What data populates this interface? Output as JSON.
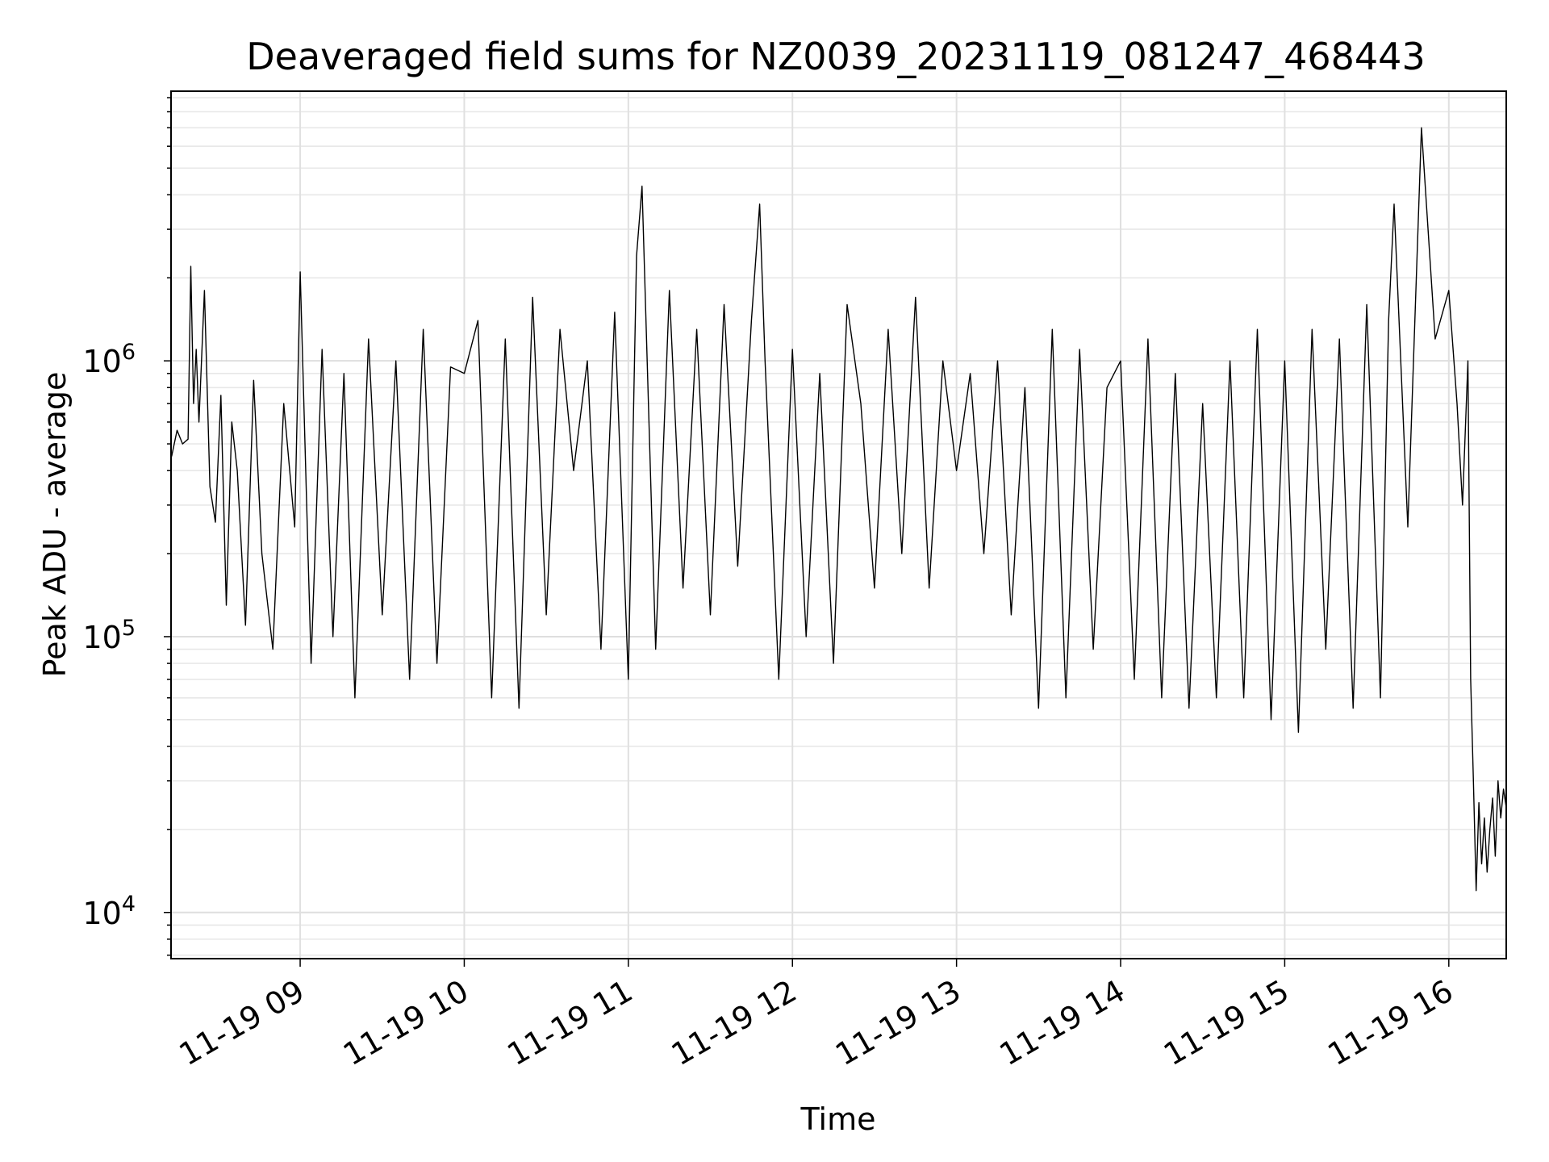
{
  "chart_data": {
    "type": "line",
    "title": "Deaveraged field sums for NZ0039_20231119_081247_468443",
    "xlabel": "Time",
    "ylabel": "Peak ADU - average",
    "yscale": "log",
    "ylim": [
      6800,
      9500000
    ],
    "xlim": [
      "2023-11-19 08:12:47",
      "2023-11-19 16:21:00"
    ],
    "grid": true,
    "line_color": "#000000",
    "x_ticks": [
      {
        "label": "11-19 09",
        "value": "2023-11-19 09:00"
      },
      {
        "label": "11-19 10",
        "value": "2023-11-19 10:00"
      },
      {
        "label": "11-19 11",
        "value": "2023-11-19 11:00"
      },
      {
        "label": "11-19 12",
        "value": "2023-11-19 12:00"
      },
      {
        "label": "11-19 13",
        "value": "2023-11-19 13:00"
      },
      {
        "label": "11-19 14",
        "value": "2023-11-19 14:00"
      },
      {
        "label": "11-19 15",
        "value": "2023-11-19 15:00"
      },
      {
        "label": "11-19 16",
        "value": "2023-11-19 16:00"
      }
    ],
    "y_ticks": [
      {
        "base": "10",
        "exp": "4",
        "value": 10000
      },
      {
        "base": "10",
        "exp": "5",
        "value": 100000
      },
      {
        "base": "10",
        "exp": "6",
        "value": 1000000
      }
    ],
    "series": [
      {
        "x": [
          "2023-11-19 08:13",
          "2023-11-19 08:15",
          "2023-11-19 08:17",
          "2023-11-19 08:19",
          "2023-11-19 08:20",
          "2023-11-19 08:21",
          "2023-11-19 08:22",
          "2023-11-19 08:23",
          "2023-11-19 08:25",
          "2023-11-19 08:27",
          "2023-11-19 08:29",
          "2023-11-19 08:31",
          "2023-11-19 08:33",
          "2023-11-19 08:35",
          "2023-11-19 08:37",
          "2023-11-19 08:40",
          "2023-11-19 08:43",
          "2023-11-19 08:46",
          "2023-11-19 08:50",
          "2023-11-19 08:54",
          "2023-11-19 08:58",
          "2023-11-19 09:00",
          "2023-11-19 09:04",
          "2023-11-19 09:08",
          "2023-11-19 09:12",
          "2023-11-19 09:16",
          "2023-11-19 09:20",
          "2023-11-19 09:25",
          "2023-11-19 09:30",
          "2023-11-19 09:35",
          "2023-11-19 09:40",
          "2023-11-19 09:45",
          "2023-11-19 09:50",
          "2023-11-19 09:55",
          "2023-11-19 10:00",
          "2023-11-19 10:05",
          "2023-11-19 10:10",
          "2023-11-19 10:15",
          "2023-11-19 10:20",
          "2023-11-19 10:25",
          "2023-11-19 10:30",
          "2023-11-19 10:35",
          "2023-11-19 10:40",
          "2023-11-19 10:45",
          "2023-11-19 10:50",
          "2023-11-19 10:55",
          "2023-11-19 11:00",
          "2023-11-19 11:03",
          "2023-11-19 11:05",
          "2023-11-19 11:10",
          "2023-11-19 11:15",
          "2023-11-19 11:20",
          "2023-11-19 11:25",
          "2023-11-19 11:30",
          "2023-11-19 11:35",
          "2023-11-19 11:40",
          "2023-11-19 11:45",
          "2023-11-19 11:48",
          "2023-11-19 11:50",
          "2023-11-19 11:55",
          "2023-11-19 12:00",
          "2023-11-19 12:05",
          "2023-11-19 12:10",
          "2023-11-19 12:15",
          "2023-11-19 12:20",
          "2023-11-19 12:25",
          "2023-11-19 12:30",
          "2023-11-19 12:35",
          "2023-11-19 12:40",
          "2023-11-19 12:45",
          "2023-11-19 12:50",
          "2023-11-19 12:55",
          "2023-11-19 13:00",
          "2023-11-19 13:05",
          "2023-11-19 13:10",
          "2023-11-19 13:15",
          "2023-11-19 13:20",
          "2023-11-19 13:25",
          "2023-11-19 13:30",
          "2023-11-19 13:35",
          "2023-11-19 13:40",
          "2023-11-19 13:45",
          "2023-11-19 13:50",
          "2023-11-19 13:55",
          "2023-11-19 14:00",
          "2023-11-19 14:05",
          "2023-11-19 14:10",
          "2023-11-19 14:15",
          "2023-11-19 14:20",
          "2023-11-19 14:25",
          "2023-11-19 14:30",
          "2023-11-19 14:35",
          "2023-11-19 14:40",
          "2023-11-19 14:45",
          "2023-11-19 14:50",
          "2023-11-19 14:55",
          "2023-11-19 15:00",
          "2023-11-19 15:05",
          "2023-11-19 15:10",
          "2023-11-19 15:15",
          "2023-11-19 15:20",
          "2023-11-19 15:25",
          "2023-11-19 15:30",
          "2023-11-19 15:35",
          "2023-11-19 15:38",
          "2023-11-19 15:40",
          "2023-11-19 15:45",
          "2023-11-19 15:50",
          "2023-11-19 15:55",
          "2023-11-19 16:00",
          "2023-11-19 16:03",
          "2023-11-19 16:05",
          "2023-11-19 16:07",
          "2023-11-19 16:08",
          "2023-11-19 16:09",
          "2023-11-19 16:10",
          "2023-11-19 16:11",
          "2023-11-19 16:12",
          "2023-11-19 16:13",
          "2023-11-19 16:14",
          "2023-11-19 16:15",
          "2023-11-19 16:16",
          "2023-11-19 16:17",
          "2023-11-19 16:18",
          "2023-11-19 16:19",
          "2023-11-19 16:20",
          "2023-11-19 16:21"
        ],
        "y": [
          450000,
          560000,
          500000,
          520000,
          2200000,
          700000,
          1100000,
          600000,
          1800000,
          350000,
          260000,
          750000,
          130000,
          600000,
          400000,
          110000,
          850000,
          200000,
          90000,
          700000,
          250000,
          2100000,
          80000,
          1100000,
          100000,
          900000,
          60000,
          1200000,
          120000,
          1000000,
          70000,
          1300000,
          80000,
          950000,
          900000,
          1400000,
          60000,
          1200000,
          55000,
          1700000,
          120000,
          1300000,
          400000,
          1000000,
          90000,
          1500000,
          70000,
          2400000,
          4300000,
          90000,
          1800000,
          150000,
          1300000,
          120000,
          1600000,
          180000,
          1400000,
          3700000,
          1000000,
          70000,
          1100000,
          100000,
          900000,
          80000,
          1600000,
          700000,
          150000,
          1300000,
          200000,
          1700000,
          150000,
          1000000,
          400000,
          900000,
          200000,
          1000000,
          120000,
          800000,
          55000,
          1300000,
          60000,
          1100000,
          90000,
          800000,
          1000000,
          70000,
          1200000,
          60000,
          900000,
          55000,
          700000,
          60000,
          1000000,
          60000,
          1300000,
          50000,
          1000000,
          45000,
          1300000,
          90000,
          1200000,
          55000,
          1600000,
          60000,
          1400000,
          3700000,
          250000,
          7000000,
          1200000,
          1800000,
          700000,
          300000,
          1000000,
          70000,
          30000,
          12000,
          25000,
          15000,
          22000,
          14000,
          20000,
          26000,
          16000,
          30000,
          22000,
          28000,
          24000
        ]
      }
    ]
  }
}
